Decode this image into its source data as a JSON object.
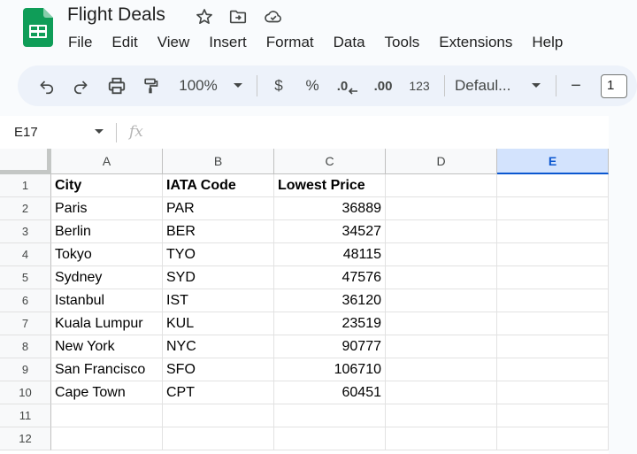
{
  "app": {
    "doc_title": "Flight Deals",
    "brand_color": "#0f9d58",
    "icons": [
      "star-icon",
      "move-to-folder-icon",
      "cloud-saved-icon"
    ]
  },
  "menu": [
    "File",
    "Edit",
    "View",
    "Insert",
    "Format",
    "Data",
    "Tools",
    "Extensions",
    "Help"
  ],
  "toolbar": {
    "zoom": "100%",
    "currency": "$",
    "percent": "%",
    "decrease_decimal": ".0",
    "increase_decimal": ".00",
    "number_format": "123",
    "font": "Defaul...",
    "font_size_minus": "−",
    "font_size": "1"
  },
  "formula_bar": {
    "cell_ref": "E17",
    "fx": "fx",
    "value": ""
  },
  "sheet": {
    "columns": [
      "A",
      "B",
      "C",
      "D",
      "E"
    ],
    "selected_column": "E",
    "rows": [
      "1",
      "2",
      "3",
      "4",
      "5",
      "6",
      "7",
      "8",
      "9",
      "10",
      "11",
      "12"
    ],
    "header": [
      "City",
      "IATA Code",
      "Lowest Price"
    ],
    "data": [
      [
        "Paris",
        "PAR",
        "36889"
      ],
      [
        "Berlin",
        "BER",
        "34527"
      ],
      [
        "Tokyo",
        "TYO",
        "48115"
      ],
      [
        "Sydney",
        "SYD",
        "47576"
      ],
      [
        "Istanbul",
        "IST",
        "36120"
      ],
      [
        "Kuala Lumpur",
        "KUL",
        "23519"
      ],
      [
        "New York",
        "NYC",
        "90777"
      ],
      [
        "San Francisco",
        "SFO",
        "106710"
      ],
      [
        "Cape Town",
        "CPT",
        "60451"
      ]
    ]
  }
}
